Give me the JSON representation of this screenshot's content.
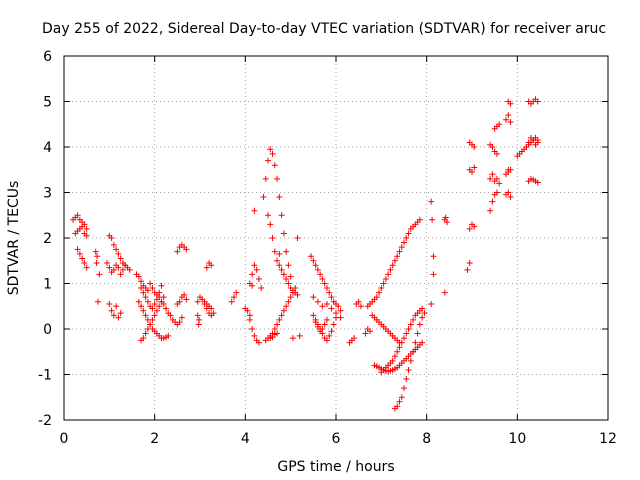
{
  "chart_data": {
    "type": "scatter",
    "title": "Day 255 of 2022, Sidereal Day-to-day VTEC variation (SDTVAR) for receiver aruc",
    "xlabel": "GPS time / hours",
    "ylabel": "SDTVAR / TECUs",
    "xlim": [
      0,
      12
    ],
    "ylim": [
      -2,
      6
    ],
    "xticks": [
      "0",
      "2",
      "4",
      "6",
      "8",
      "10",
      "12"
    ],
    "yticks": [
      "-2",
      "-1",
      "0",
      "1",
      "2",
      "3",
      "4",
      "5",
      "6"
    ],
    "grid": true,
    "marker": "+",
    "color": "#ff0000",
    "series": [
      {
        "name": "SDTVAR",
        "x": [
          0.2,
          0.25,
          0.3,
          0.35,
          0.4,
          0.45,
          0.5,
          0.25,
          0.3,
          0.35,
          0.4,
          0.45,
          0.5,
          0.3,
          0.35,
          0.4,
          0.45,
          0.5,
          0.75,
          0.72,
          0.78,
          0.7,
          0.73,
          1.0,
          1.05,
          1.1,
          1.15,
          1.2,
          1.25,
          1.3,
          1.35,
          1.4,
          1.45,
          0.95,
          1.0,
          1.05,
          1.1,
          1.15,
          1.2,
          1.25,
          1.3,
          1.35,
          1.0,
          1.05,
          1.1,
          1.15,
          1.2,
          1.25,
          1.6,
          1.65,
          1.7,
          1.75,
          1.8,
          1.85,
          1.9,
          1.95,
          2.0,
          2.05,
          2.1,
          2.15,
          2.2,
          2.25,
          2.3,
          2.35,
          2.4,
          2.45,
          2.5,
          2.55,
          2.6,
          1.65,
          1.7,
          1.75,
          1.8,
          1.85,
          1.9,
          1.95,
          2.0,
          2.05,
          2.1,
          2.15,
          2.2,
          2.25,
          2.3,
          1.7,
          1.75,
          1.8,
          1.85,
          1.9,
          1.95,
          2.0,
          2.05,
          2.1,
          2.15,
          2.2,
          1.7,
          1.75,
          1.8,
          1.85,
          1.9,
          1.95,
          2.0,
          2.05,
          2.1,
          2.15,
          2.5,
          2.55,
          2.6,
          2.65,
          2.7,
          2.5,
          2.55,
          2.6,
          2.65,
          2.7,
          2.95,
          3.0,
          3.05,
          3.1,
          3.15,
          3.2,
          3.25,
          3.3,
          3.15,
          3.2,
          3.25,
          3.1,
          3.15,
          3.2,
          3.25,
          2.95,
          2.98,
          2.97,
          3.7,
          3.75,
          3.8,
          4.0,
          4.05,
          4.1,
          4.15,
          4.2,
          4.25,
          4.3,
          4.1,
          4.15,
          4.2,
          4.25,
          4.3,
          4.35,
          4.1,
          4.15,
          4.2,
          4.4,
          4.45,
          4.5,
          4.55,
          4.6,
          4.65,
          4.7,
          4.75,
          4.8,
          4.85,
          4.9,
          4.95,
          5.0,
          5.05,
          4.45,
          4.5,
          4.55,
          4.6,
          4.65,
          4.7,
          4.75,
          4.8,
          4.85,
          4.9,
          4.95,
          5.0,
          5.05,
          5.1,
          5.15,
          4.5,
          4.55,
          4.6,
          4.65,
          4.7,
          4.75,
          4.8,
          4.85,
          4.9,
          4.95,
          5.0,
          5.05,
          5.1,
          5.15,
          5.2,
          4.55,
          4.6,
          4.65,
          4.7,
          4.75,
          5.45,
          5.5,
          5.55,
          5.6,
          5.65,
          5.7,
          5.75,
          5.8,
          5.85,
          5.9,
          5.95,
          6.0,
          6.05,
          6.1,
          5.5,
          5.55,
          5.6,
          5.65,
          5.7,
          5.75,
          5.8,
          5.85,
          5.9,
          5.95,
          6.0,
          5.55,
          5.6,
          5.65,
          5.7,
          5.75,
          5.8,
          5.5,
          5.6,
          5.7,
          5.8,
          5.9,
          6.0,
          6.1,
          6.3,
          6.35,
          6.4,
          6.45,
          6.5,
          6.55,
          6.85,
          6.9,
          6.95,
          7.0,
          7.05,
          7.1,
          7.15,
          7.2,
          7.25,
          7.3,
          7.35,
          7.4,
          7.45,
          7.5,
          7.55,
          7.6,
          7.65,
          7.7,
          7.75,
          7.8,
          7.85,
          7.9,
          7.0,
          7.05,
          7.1,
          7.15,
          7.2,
          7.25,
          7.3,
          7.35,
          7.4,
          7.45,
          7.5,
          7.55,
          7.6,
          7.65,
          7.7,
          7.75,
          7.8,
          7.85,
          7.9,
          6.7,
          6.75,
          6.8,
          6.85,
          6.9,
          6.95,
          7.0,
          7.05,
          7.1,
          7.15,
          7.2,
          7.25,
          7.3,
          7.35,
          7.4,
          7.45,
          7.5,
          7.55,
          7.6,
          7.65,
          7.7,
          7.75,
          7.8,
          7.85,
          7.3,
          7.35,
          7.4,
          7.45,
          7.5,
          7.55,
          7.6,
          7.65,
          7.7,
          7.75,
          7.8,
          7.85,
          7.9,
          7.95,
          6.8,
          6.85,
          6.9,
          6.95,
          7.0,
          7.05,
          7.1,
          7.15,
          7.2,
          7.25,
          7.3,
          7.35,
          7.4,
          6.65,
          6.7,
          6.75,
          8.1,
          8.12,
          8.15,
          8.1,
          8.15,
          8.4,
          8.45,
          8.42,
          8.4,
          8.95,
          9.0,
          9.05,
          8.95,
          9.0,
          9.05,
          8.95,
          9.0,
          9.05,
          8.9,
          8.95,
          9.4,
          9.45,
          9.5,
          9.55,
          9.6,
          9.4,
          9.45,
          9.5,
          9.55,
          9.4,
          9.45,
          9.5,
          9.55,
          9.75,
          9.8,
          9.85,
          9.75,
          9.8,
          9.85,
          9.75,
          9.8,
          9.85,
          9.5,
          9.55,
          9.6,
          10.0,
          10.05,
          10.1,
          10.15,
          10.2,
          10.25,
          10.3,
          10.35,
          10.4,
          10.45,
          10.25,
          10.3,
          10.35,
          10.4,
          10.45,
          10.25,
          10.3,
          10.35,
          10.4,
          10.45,
          10.2,
          10.25,
          10.3,
          10.35,
          10.4,
          10.45,
          9.8,
          9.85,
          9.8
        ],
        "y": [
          2.4,
          2.45,
          2.5,
          2.4,
          2.35,
          2.3,
          2.2,
          2.1,
          2.15,
          2.2,
          2.25,
          2.1,
          2.05,
          1.75,
          1.65,
          1.55,
          1.45,
          1.35,
          0.6,
          1.45,
          1.2,
          1.7,
          1.6,
          2.05,
          2.0,
          1.85,
          1.75,
          1.65,
          1.55,
          1.45,
          1.4,
          1.35,
          1.3,
          1.45,
          1.35,
          1.25,
          1.3,
          1.4,
          1.35,
          1.2,
          1.3,
          1.4,
          0.55,
          0.4,
          0.3,
          0.5,
          0.25,
          0.35,
          1.2,
          1.15,
          1.05,
          0.95,
          0.9,
          0.85,
          1.0,
          0.9,
          0.8,
          0.75,
          0.7,
          0.6,
          0.55,
          0.45,
          0.35,
          0.3,
          0.2,
          0.15,
          0.1,
          0.15,
          0.25,
          0.6,
          0.5,
          0.4,
          0.3,
          0.2,
          0.1,
          0.0,
          -0.05,
          -0.1,
          -0.15,
          -0.2,
          -0.2,
          -0.18,
          -0.15,
          -0.25,
          -0.2,
          -0.1,
          0.0,
          0.1,
          0.2,
          0.3,
          0.4,
          0.5,
          0.6,
          0.7,
          0.9,
          0.8,
          0.7,
          0.6,
          0.5,
          0.45,
          0.55,
          0.65,
          0.8,
          0.95,
          1.7,
          1.8,
          1.85,
          1.8,
          1.75,
          0.55,
          0.6,
          0.7,
          0.75,
          0.65,
          0.6,
          0.7,
          0.65,
          0.55,
          0.45,
          0.35,
          0.3,
          0.35,
          1.35,
          1.45,
          1.4,
          0.6,
          0.55,
          0.5,
          0.45,
          0.3,
          0.2,
          0.1,
          0.6,
          0.7,
          0.8,
          0.45,
          0.4,
          0.3,
          1.2,
          1.4,
          1.3,
          1.1,
          0.2,
          0.0,
          -0.15,
          -0.25,
          -0.3,
          0.9,
          1.0,
          0.95,
          2.6,
          2.9,
          3.3,
          3.7,
          3.95,
          3.85,
          3.6,
          3.3,
          2.9,
          2.5,
          2.1,
          1.7,
          1.4,
          1.15,
          -0.2,
          -0.25,
          -0.2,
          -0.15,
          -0.1,
          0.0,
          0.1,
          0.2,
          0.3,
          0.4,
          0.5,
          0.6,
          0.7,
          0.8,
          0.9,
          2.0,
          2.5,
          2.3,
          2.0,
          1.7,
          1.5,
          1.4,
          1.3,
          1.2,
          1.1,
          1.0,
          0.9,
          0.85,
          0.8,
          0.75,
          -0.15,
          -0.2,
          -0.18,
          -0.12,
          -0.1,
          1.65,
          1.6,
          1.5,
          1.4,
          1.3,
          1.2,
          1.1,
          1.0,
          0.9,
          0.8,
          0.7,
          0.6,
          0.55,
          0.5,
          0.4,
          0.3,
          0.2,
          0.1,
          0.0,
          -0.1,
          -0.2,
          -0.25,
          -0.15,
          -0.05,
          0.1,
          0.25,
          0.15,
          0.05,
          -0.05,
          0.0,
          0.1,
          0.2,
          0.7,
          0.6,
          0.5,
          0.55,
          0.45,
          0.35,
          0.25,
          -0.3,
          -0.25,
          -0.2,
          0.55,
          0.6,
          0.5,
          -0.8,
          -0.82,
          -0.85,
          -0.88,
          -0.9,
          -0.92,
          -0.93,
          -0.92,
          -0.9,
          -0.88,
          -0.85,
          -0.8,
          -0.75,
          -0.7,
          -0.65,
          -0.6,
          -0.55,
          -0.5,
          -0.45,
          -0.4,
          -0.35,
          -0.3,
          -0.95,
          -0.9,
          -0.85,
          -0.8,
          -0.75,
          -0.7,
          -0.6,
          -0.5,
          -0.4,
          -0.3,
          -0.2,
          -0.1,
          0.0,
          0.1,
          0.2,
          0.3,
          0.35,
          0.4,
          0.45,
          0.5,
          0.55,
          0.6,
          0.65,
          0.7,
          0.8,
          0.9,
          1.0,
          1.1,
          1.2,
          1.3,
          1.4,
          1.5,
          1.6,
          1.7,
          1.8,
          1.9,
          2.0,
          2.1,
          2.2,
          2.25,
          2.3,
          2.35,
          2.4,
          -1.75,
          -1.7,
          -1.6,
          -1.5,
          -1.3,
          -1.1,
          -0.9,
          -0.7,
          -0.5,
          -0.3,
          -0.1,
          0.1,
          0.25,
          0.35,
          0.3,
          0.25,
          0.2,
          0.15,
          0.1,
          0.05,
          0.0,
          -0.05,
          -0.1,
          -0.15,
          -0.2,
          -0.25,
          -0.3,
          -0.1,
          0.0,
          -0.05,
          2.8,
          2.4,
          1.2,
          0.55,
          1.6,
          2.4,
          2.35,
          2.45,
          0.8,
          2.2,
          2.3,
          2.25,
          3.5,
          3.45,
          3.55,
          4.1,
          4.05,
          4.0,
          1.3,
          1.45,
          3.3,
          3.4,
          3.25,
          3.3,
          3.2,
          2.6,
          2.8,
          2.95,
          3.0,
          4.05,
          4.0,
          3.9,
          3.85,
          3.4,
          3.45,
          3.5,
          2.95,
          3.0,
          2.9,
          4.6,
          4.7,
          4.55,
          4.4,
          4.45,
          4.5,
          3.8,
          3.85,
          3.9,
          3.95,
          4.0,
          4.05,
          4.1,
          4.15,
          4.2,
          4.15,
          5.0,
          4.95,
          5.0,
          5.05,
          5.0,
          3.25,
          3.3,
          3.28,
          3.25,
          3.22,
          4.0,
          4.1,
          4.2,
          4.15,
          4.05,
          4.1,
          5.0,
          4.95,
          3.5
        ]
      }
    ]
  }
}
